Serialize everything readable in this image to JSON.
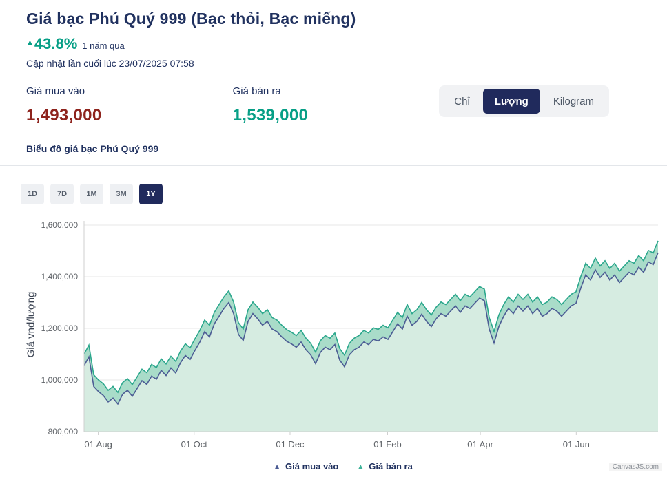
{
  "header": {
    "title": "Giá bạc Phú Quý 999 (Bạc thỏi, Bạc miếng)",
    "change_pct": "43.8%",
    "change_period": "1 năm qua",
    "updated": "Cập nhật lần cuối lúc 23/07/2025 07:58"
  },
  "prices": {
    "buy_label": "Giá mua vào",
    "buy_value": "1,493,000",
    "sell_label": "Giá bán ra",
    "sell_value": "1,539,000"
  },
  "unit_toggle": {
    "options": [
      "Chỉ",
      "Lượng",
      "Kilogram"
    ],
    "selected": "Lượng"
  },
  "chart_section": {
    "title": "Biểu đồ giá bạc Phú Quý 999",
    "range_buttons": [
      "1D",
      "7D",
      "1M",
      "3M",
      "1Y"
    ],
    "selected_range": "1Y",
    "watermark": "CanvasJS.com"
  },
  "colors": {
    "navy": "#20315f",
    "teal": "#079f86",
    "maroon": "#8e231c",
    "selected_button_bg": "#202a5c"
  },
  "chart_data": {
    "type": "area",
    "title": "Biểu đồ giá bạc Phú Quý 999",
    "xlabel": "",
    "ylabel": "Giá vnd/lượng",
    "ylim": [
      800000,
      1600000
    ],
    "y_ticks": [
      800000,
      1000000,
      1200000,
      1400000,
      1600000
    ],
    "y_tick_labels": [
      "800,000",
      "1,000,000",
      "1,200,000",
      "1,400,000",
      "1,600,000"
    ],
    "x_tick_labels": [
      "01 Aug",
      "01 Oct",
      "01 Dec",
      "01 Feb",
      "01 Apr",
      "01 Jun"
    ],
    "x_tick_positions": [
      0.0247,
      0.1918,
      0.3589,
      0.5288,
      0.6904,
      0.8575
    ],
    "grid": true,
    "legend_position": "bottom",
    "legend": [
      {
        "name": "Giá mua vào",
        "color": "#4c5c94"
      },
      {
        "name": "Giá bán ra",
        "color": "#3fb39a"
      }
    ],
    "series": [
      {
        "name": "Giá mua vào",
        "color": "#4c5c94",
        "fill": "#d6ece1",
        "values": [
          1055000,
          1090000,
          975000,
          955000,
          940000,
          915000,
          930000,
          907000,
          945000,
          960000,
          937000,
          967000,
          997000,
          983000,
          1015000,
          1003000,
          1037000,
          1017000,
          1047000,
          1027000,
          1067000,
          1095000,
          1080000,
          1115000,
          1147000,
          1187000,
          1167000,
          1217000,
          1247000,
          1277000,
          1300000,
          1257000,
          1177000,
          1153000,
          1227000,
          1257000,
          1237000,
          1212000,
          1227000,
          1197000,
          1187000,
          1167000,
          1150000,
          1140000,
          1127000,
          1147000,
          1117000,
          1097000,
          1063000,
          1107000,
          1127000,
          1117000,
          1137000,
          1077000,
          1051000,
          1097000,
          1117000,
          1127000,
          1147000,
          1137000,
          1157000,
          1151000,
          1167000,
          1157000,
          1187000,
          1217000,
          1197000,
          1247000,
          1212000,
          1227000,
          1255000,
          1227000,
          1207000,
          1237000,
          1257000,
          1247000,
          1267000,
          1287000,
          1262000,
          1287000,
          1277000,
          1297000,
          1317000,
          1307000,
          1197000,
          1143000,
          1207000,
          1247000,
          1277000,
          1257000,
          1287000,
          1267000,
          1287000,
          1257000,
          1277000,
          1247000,
          1257000,
          1277000,
          1267000,
          1247000,
          1267000,
          1287000,
          1297000,
          1357000,
          1407000,
          1387000,
          1427000,
          1397000,
          1417000,
          1387000,
          1407000,
          1377000,
          1397000,
          1417000,
          1407000,
          1437000,
          1417000,
          1457000,
          1447000,
          1493000
        ]
      },
      {
        "name": "Giá bán ra",
        "color": "#2ba78c",
        "fill": "#a9dcc9",
        "values": [
          1100000,
          1135000,
          1020000,
          1000000,
          985000,
          960000,
          975000,
          952000,
          990000,
          1005000,
          982000,
          1012000,
          1042000,
          1028000,
          1060000,
          1048000,
          1082000,
          1062000,
          1092000,
          1072000,
          1112000,
          1140000,
          1125000,
          1160000,
          1192000,
          1232000,
          1212000,
          1262000,
          1292000,
          1322000,
          1345000,
          1302000,
          1222000,
          1198000,
          1272000,
          1302000,
          1282000,
          1257000,
          1272000,
          1242000,
          1232000,
          1212000,
          1195000,
          1185000,
          1172000,
          1192000,
          1162000,
          1142000,
          1108000,
          1152000,
          1172000,
          1162000,
          1182000,
          1122000,
          1096000,
          1142000,
          1162000,
          1172000,
          1192000,
          1182000,
          1202000,
          1196000,
          1212000,
          1202000,
          1232000,
          1262000,
          1242000,
          1292000,
          1257000,
          1272000,
          1300000,
          1272000,
          1252000,
          1282000,
          1302000,
          1292000,
          1312000,
          1332000,
          1307000,
          1332000,
          1322000,
          1342000,
          1362000,
          1352000,
          1242000,
          1188000,
          1252000,
          1292000,
          1322000,
          1302000,
          1332000,
          1312000,
          1332000,
          1302000,
          1322000,
          1292000,
          1302000,
          1322000,
          1312000,
          1292000,
          1312000,
          1332000,
          1342000,
          1402000,
          1452000,
          1432000,
          1472000,
          1442000,
          1462000,
          1432000,
          1452000,
          1422000,
          1442000,
          1462000,
          1452000,
          1482000,
          1462000,
          1502000,
          1492000,
          1539000
        ]
      }
    ]
  }
}
